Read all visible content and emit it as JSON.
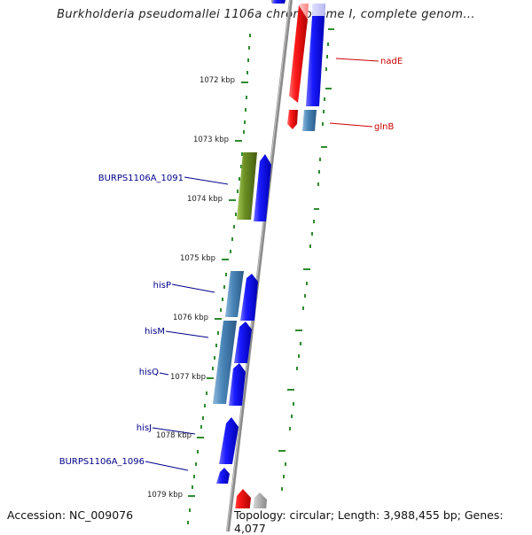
{
  "title": "Burkholderia pseudomallei 1106a chromosome I, complete genom...",
  "footer": {
    "accession": "Accession: NC_009076",
    "info": "Topology: circular; Length: 3,988,455 bp; Genes: 4,077"
  },
  "kbp_ticks": [
    "1072 kbp",
    "1073 kbp",
    "1074 kbp",
    "1075 kbp",
    "1076 kbp",
    "1077 kbp",
    "1078 kbp",
    "1079 kbp"
  ],
  "left_genes": [
    "BURPS1106A_1091",
    "hisP",
    "hisM",
    "hisQ",
    "hisJ",
    "BURPS1106A_1096"
  ],
  "right_genes": [
    "nadE",
    "glnB"
  ],
  "colors": {
    "blue_label": "#00008b",
    "red_label": "#cc0000",
    "tick_green": "#2e8b2e",
    "arrow_blue": "#0000ee",
    "arrow_red": "#ee0000",
    "steel_blue": "#4a86b8",
    "olive_green": "#6b8e23",
    "backbone": "#888888"
  }
}
